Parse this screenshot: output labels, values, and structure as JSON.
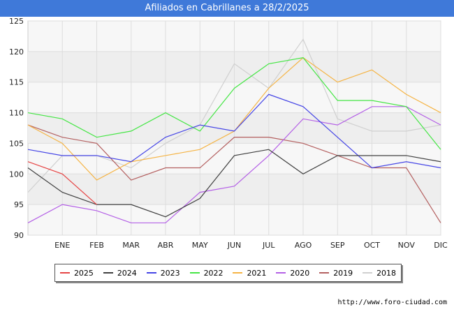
{
  "header": {
    "title": "Afiliados en Cabrillanes a 28/2/2025"
  },
  "source": "http://www.foro-ciudad.com",
  "chart_data": {
    "type": "line",
    "categories": [
      "",
      "ENE",
      "FEB",
      "MAR",
      "ABR",
      "MAY",
      "JUN",
      "JUL",
      "AGO",
      "SEP",
      "OCT",
      "NOV",
      "DIC"
    ],
    "ylim": [
      90,
      125
    ],
    "yticks": [
      90,
      95,
      100,
      105,
      110,
      115,
      120,
      125
    ],
    "grid": true,
    "legend_position": "bottom",
    "series": [
      {
        "name": "2025",
        "color": "#e64545",
        "values": [
          102,
          100,
          95,
          null,
          null,
          null,
          null,
          null,
          null,
          null,
          null,
          null,
          null
        ]
      },
      {
        "name": "2024",
        "color": "#404040",
        "values": [
          101,
          97,
          95,
          95,
          93,
          96,
          103,
          104,
          100,
          103,
          103,
          103,
          102
        ]
      },
      {
        "name": "2023",
        "color": "#4545e6",
        "values": [
          104,
          103,
          103,
          102,
          106,
          108,
          107,
          113,
          111,
          106,
          101,
          102,
          101
        ]
      },
      {
        "name": "2022",
        "color": "#45e645",
        "values": [
          110,
          109,
          106,
          107,
          110,
          107,
          114,
          118,
          119,
          112,
          112,
          111,
          104
        ]
      },
      {
        "name": "2021",
        "color": "#f5b445",
        "values": [
          108,
          105,
          99,
          102,
          103,
          104,
          107,
          114,
          119,
          115,
          117,
          113,
          110
        ]
      },
      {
        "name": "2020",
        "color": "#b460e6",
        "values": [
          92,
          95,
          94,
          92,
          92,
          97,
          98,
          103,
          109,
          108,
          111,
          111,
          108
        ]
      },
      {
        "name": "2019",
        "color": "#b46060",
        "values": [
          108,
          106,
          105,
          99,
          101,
          101,
          106,
          106,
          105,
          103,
          101,
          101,
          92
        ]
      },
      {
        "name": "2018",
        "color": "#d0d0d0",
        "values": [
          97,
          103,
          103,
          101,
          105,
          108,
          118,
          114,
          122,
          109,
          107,
          107,
          108
        ]
      }
    ]
  }
}
